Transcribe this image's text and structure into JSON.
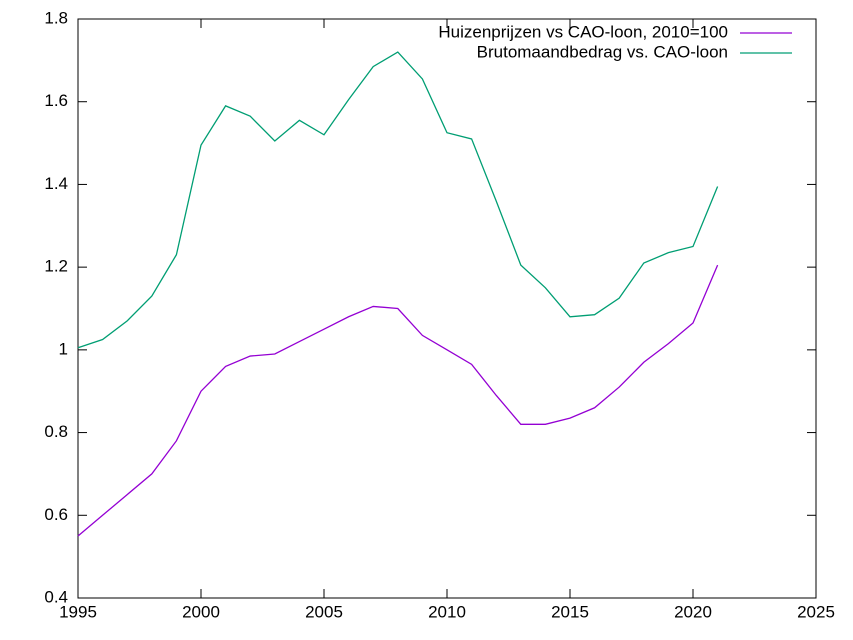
{
  "chart_data": {
    "type": "line",
    "x": [
      1995,
      1996,
      1997,
      1998,
      1999,
      2000,
      2001,
      2002,
      2003,
      2004,
      2005,
      2006,
      2007,
      2008,
      2009,
      2010,
      2011,
      2012,
      2013,
      2014,
      2015,
      2016,
      2017,
      2018,
      2019,
      2020,
      2021
    ],
    "series": [
      {
        "name": "Huizenprijzen vs CAO-loon, 2010=100",
        "color": "#9400d3",
        "values": [
          0.55,
          0.6,
          0.65,
          0.7,
          0.78,
          0.9,
          0.96,
          0.985,
          0.99,
          1.02,
          1.05,
          1.08,
          1.105,
          1.1,
          1.035,
          1.0,
          0.965,
          0.89,
          0.82,
          0.82,
          0.835,
          0.86,
          0.91,
          0.97,
          1.015,
          1.065,
          1.205
        ]
      },
      {
        "name": "Brutomaandbedrag vs. CAO-loon",
        "color": "#009e73",
        "values": [
          1.005,
          1.025,
          1.07,
          1.13,
          1.23,
          1.495,
          1.59,
          1.565,
          1.505,
          1.555,
          1.52,
          1.605,
          1.685,
          1.72,
          1.655,
          1.525,
          1.51,
          1.36,
          1.205,
          1.15,
          1.08,
          1.085,
          1.125,
          1.21,
          1.235,
          1.25,
          1.395
        ]
      }
    ],
    "xlim": [
      1995,
      2025
    ],
    "xticks": [
      1995,
      2000,
      2005,
      2010,
      2015,
      2020,
      2025
    ],
    "ylim": [
      0.4,
      1.8
    ],
    "yticks": [
      0.4,
      0.6,
      0.8,
      1,
      1.2,
      1.4,
      1.6,
      1.8
    ],
    "legend": "top-right"
  }
}
